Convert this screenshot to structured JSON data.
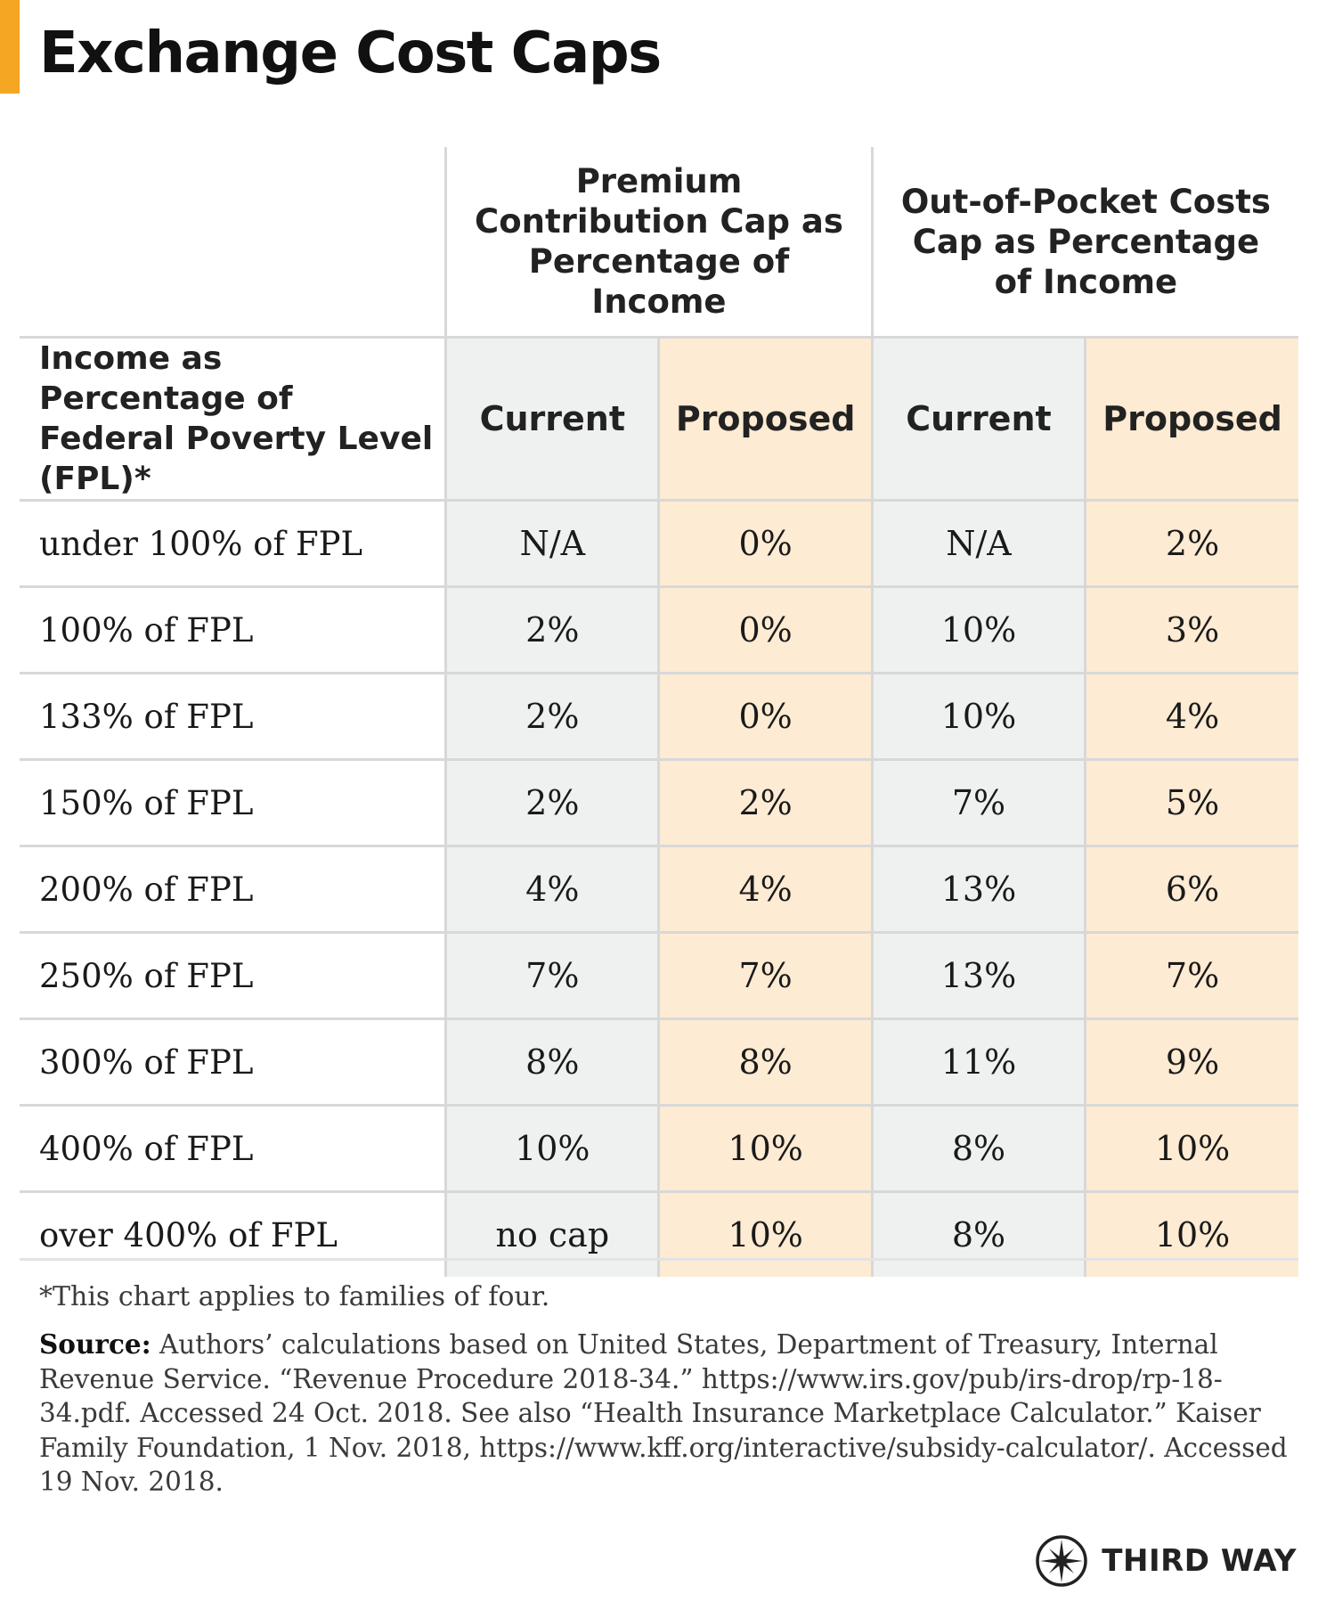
{
  "title": "Exchange Cost Caps",
  "colors": {
    "accent": "#f5a623",
    "current_bg": "#eff1f1",
    "proposed_bg": "#fdebd3",
    "rule": "#d8d8d8"
  },
  "table": {
    "group_headers": {
      "premium": "Premium Contribution Cap as Percentage of Income",
      "oop": "Out-of-Pocket Costs Cap as Percentage of Income"
    },
    "row_header": "Income as Percentage of Federal Poverty Level (FPL)*",
    "columns": [
      "Current",
      "Proposed",
      "Current",
      "Proposed"
    ],
    "rows": [
      {
        "label": "under 100% of FPL",
        "values": [
          "N/A",
          "0%",
          "N/A",
          "2%"
        ]
      },
      {
        "label": "100% of FPL",
        "values": [
          "2%",
          "0%",
          "10%",
          "3%"
        ]
      },
      {
        "label": "133% of FPL",
        "values": [
          "2%",
          "0%",
          "10%",
          "4%"
        ]
      },
      {
        "label": "150% of FPL",
        "values": [
          "2%",
          "2%",
          "7%",
          "5%"
        ]
      },
      {
        "label": "200% of FPL",
        "values": [
          "4%",
          "4%",
          "13%",
          "6%"
        ]
      },
      {
        "label": "250% of FPL",
        "values": [
          "7%",
          "7%",
          "13%",
          "7%"
        ]
      },
      {
        "label": "300% of FPL",
        "values": [
          "8%",
          "8%",
          "11%",
          "9%"
        ]
      },
      {
        "label": "400% of FPL",
        "values": [
          "10%",
          "10%",
          "8%",
          "10%"
        ]
      },
      {
        "label": "over 400% of FPL",
        "values": [
          "no cap",
          "10%",
          "8%",
          "10%"
        ]
      }
    ]
  },
  "footnote": "*This chart applies to families of four.",
  "source": {
    "label": "Source:",
    "text": " Authors’ calculations based on United States, Department of Treasury, Internal Revenue Service. “Revenue Procedure 2018-34.” https://www.irs.gov/pub/irs-drop/rp-18-34.pdf. Accessed 24 Oct. 2018. See also “Health Insurance Marketplace Calculator.” Kaiser Family Foundation, 1 Nov. 2018, https://www.kff.org/interactive/subsidy-calculator/. Accessed 19 Nov. 2018."
  },
  "brand": {
    "name": "THIRD WAY",
    "icon": "compass-star-icon"
  }
}
